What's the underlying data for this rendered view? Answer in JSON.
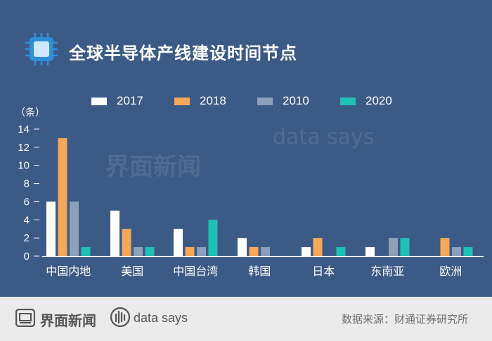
{
  "header": {
    "title": "全球半导体产线建设时间节点"
  },
  "chart_data": {
    "type": "bar",
    "title": "全球半导体产线建设时间节点",
    "unit_label": "（条）",
    "categories": [
      "中国内地",
      "美国",
      "中国台湾",
      "韩国",
      "日本",
      "东南亚",
      "欧洲"
    ],
    "series": [
      {
        "name": "2017",
        "color": "#ffffff",
        "values": [
          6,
          5,
          3,
          2,
          1,
          1,
          0
        ]
      },
      {
        "name": "2018",
        "color": "#f5a75a",
        "values": [
          13,
          3,
          1,
          1,
          2,
          0,
          2
        ]
      },
      {
        "name": "2010",
        "color": "#8e9fba",
        "values": [
          6,
          1,
          1,
          1,
          0,
          2,
          1
        ]
      },
      {
        "name": "2020",
        "color": "#1fc1b6",
        "values": [
          1,
          1,
          4,
          0,
          1,
          2,
          1
        ]
      }
    ],
    "ylim": [
      0,
      14
    ],
    "yticks": [
      0,
      2,
      4,
      6,
      8,
      10,
      12,
      14
    ],
    "grid": false,
    "legend_position": "top"
  },
  "watermark": {
    "brand_cn": "界面新闻",
    "brand_en": "data says"
  },
  "footer": {
    "brand_cn": "界面新闻",
    "brand_en": "data says",
    "source": "数据来源：财通证券研究所"
  }
}
